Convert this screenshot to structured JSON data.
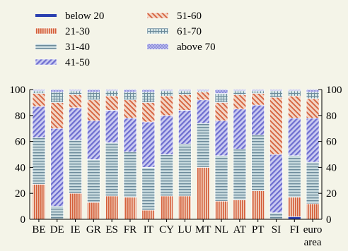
{
  "chart_data": {
    "type": "bar",
    "stacked": true,
    "title": "",
    "xlabel": "",
    "ylabel": "",
    "ylim": [
      0,
      100
    ],
    "yticks": [
      0,
      20,
      40,
      60,
      80,
      100
    ],
    "grid": false,
    "legend_position": "top-left",
    "categories": [
      "BE",
      "DE",
      "IE",
      "GR",
      "ES",
      "FR",
      "IT",
      "CY",
      "LU",
      "MT",
      "NL",
      "AT",
      "PT",
      "SI",
      "FI",
      "euro area"
    ],
    "category_lines": [
      [
        "BE"
      ],
      [
        "DE"
      ],
      [
        "IE"
      ],
      [
        "GR"
      ],
      [
        "ES"
      ],
      [
        "FR"
      ],
      [
        "IT"
      ],
      [
        "CY"
      ],
      [
        "LU"
      ],
      [
        "MT"
      ],
      [
        "NL"
      ],
      [
        "AT"
      ],
      [
        "PT"
      ],
      [
        "SI"
      ],
      [
        "FI"
      ],
      [
        "euro",
        "area"
      ]
    ],
    "series": [
      {
        "name": "below 20",
        "color": "#2a3fb0",
        "pattern": "solid",
        "values": [
          0,
          0,
          0,
          0,
          0,
          0,
          0,
          0,
          0,
          0,
          0,
          0,
          0,
          0,
          2,
          0
        ]
      },
      {
        "name": "21-30",
        "color": "#d45f3a",
        "pattern": "vlines",
        "values": [
          27,
          0,
          20,
          13,
          18,
          17,
          7,
          18,
          18,
          40,
          14,
          15,
          22,
          0,
          15,
          12
        ]
      },
      {
        "name": "31-40",
        "color": "#6b8a9a",
        "pattern": "hlines",
        "values": [
          36,
          10,
          41,
          33,
          41,
          35,
          33,
          32,
          40,
          34,
          35,
          39,
          43,
          5,
          32,
          32
        ]
      },
      {
        "name": "41-50",
        "color": "#6e6ed0",
        "pattern": "diag",
        "values": [
          24,
          60,
          25,
          30,
          25,
          26,
          35,
          30,
          26,
          18,
          27,
          31,
          23,
          45,
          29,
          34
        ]
      },
      {
        "name": "51-60",
        "color": "#d45f3a",
        "pattern": "diag",
        "values": [
          10,
          20,
          10,
          16,
          11,
          14,
          15,
          15,
          12,
          6,
          14,
          11,
          9,
          44,
          17,
          15
        ]
      },
      {
        "name": "61-70",
        "color": "#6b8a9a",
        "pattern": "grid",
        "values": [
          2,
          8,
          3,
          6,
          4,
          6,
          8,
          4,
          3,
          1,
          7,
          3,
          2,
          5,
          4,
          5
        ]
      },
      {
        "name": "above 70",
        "color": "#6e6ed0",
        "pattern": "dots",
        "values": [
          1,
          2,
          1,
          2,
          1,
          2,
          2,
          1,
          1,
          1,
          3,
          1,
          1,
          1,
          1,
          2
        ]
      }
    ]
  }
}
